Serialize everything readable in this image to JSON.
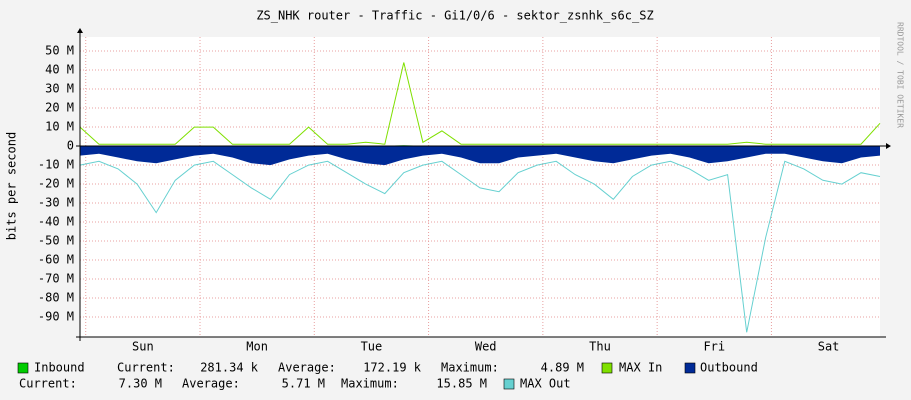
{
  "chart_data": {
    "type": "rrd",
    "title": "ZS_NHK router - Traffic - Gi1/0/6 - sektor_zsnhk_s6c_SZ",
    "y_label": "bits per second",
    "side_note": "RRDTOOL / TOBI OETIKER",
    "grid": true,
    "xlim": [
      0,
      168
    ],
    "xticks": [
      {
        "value": 13.2,
        "label": "Sun"
      },
      {
        "value": 37.2,
        "label": "Mon"
      },
      {
        "value": 61.2,
        "label": "Tue"
      },
      {
        "value": 85.2,
        "label": "Wed"
      },
      {
        "value": 109.2,
        "label": "Thu"
      },
      {
        "value": 133.2,
        "label": "Fri"
      },
      {
        "value": 157.2,
        "label": "Sat"
      }
    ],
    "ylim": [
      -100500000,
      57400000
    ],
    "yticks": [
      {
        "value": 50000000,
        "label": "50 M"
      },
      {
        "value": 40000000,
        "label": "40 M"
      },
      {
        "value": 30000000,
        "label": "30 M"
      },
      {
        "value": 20000000,
        "label": "20 M"
      },
      {
        "value": 10000000,
        "label": "10 M"
      },
      0,
      {
        "value": -10000000,
        "label": "-10 M"
      },
      {
        "value": -20000000,
        "label": "-20 M"
      },
      {
        "value": -30000000,
        "label": "-30 M"
      },
      {
        "value": -40000000,
        "label": "-40 M"
      },
      {
        "value": -50000000,
        "label": "-50 M"
      },
      {
        "value": -60000000,
        "label": "-60 M"
      },
      {
        "value": -70000000,
        "label": "-70 M"
      },
      {
        "value": -80000000,
        "label": "-80 M"
      },
      {
        "value": -90000000,
        "label": "-90 M"
      }
    ],
    "x": [
      0,
      4,
      8,
      12,
      16,
      20,
      24,
      28,
      32,
      36,
      40,
      44,
      48,
      52,
      56,
      60,
      64,
      68,
      72,
      76,
      80,
      84,
      88,
      92,
      96,
      100,
      104,
      108,
      112,
      116,
      120,
      124,
      128,
      132,
      136,
      140,
      144,
      148,
      152,
      156,
      160,
      164,
      168
    ],
    "legend_labels": {
      "current": "Current:",
      "average": "Average:",
      "maximum": "Maximum:"
    },
    "series": [
      {
        "name": "Inbound",
        "style": "area",
        "color": "#00cc00",
        "current": "281.34 k",
        "average": "172.19 k",
        "maximum": "4.89 M",
        "values": [
          200000.0,
          200000.0,
          200000.0,
          300000.0,
          200000.0,
          200000.0,
          200000.0,
          300000.0,
          200000.0,
          200000.0,
          200000.0,
          300000.0,
          200000.0,
          200000.0,
          200000.0,
          300000.0,
          200000.0,
          400000.0,
          200000.0,
          300000.0,
          200000.0,
          200000.0,
          200000.0,
          300000.0,
          200000.0,
          200000.0,
          200000.0,
          300000.0,
          200000.0,
          200000.0,
          200000.0,
          300000.0,
          200000.0,
          200000.0,
          200000.0,
          300000.0,
          200000.0,
          200000.0,
          200000.0,
          300000.0,
          200000.0,
          200000.0,
          300000.0
        ]
      },
      {
        "name": "MAX In",
        "style": "line",
        "color": "#7fe000",
        "values": [
          10000000.0,
          1000000.0,
          1000000.0,
          1000000.0,
          1000000.0,
          1000000.0,
          10000000.0,
          10000000.0,
          1000000.0,
          1000000.0,
          1000000.0,
          1000000.0,
          10000000.0,
          1000000.0,
          1000000.0,
          2000000.0,
          1000000.0,
          44000000.0,
          2000000.0,
          8000000.0,
          1000000.0,
          1000000.0,
          1000000.0,
          1000000.0,
          1000000.0,
          1000000.0,
          1000000.0,
          1000000.0,
          1000000.0,
          1000000.0,
          1000000.0,
          1000000.0,
          1000000.0,
          1000000.0,
          1000000.0,
          2000000.0,
          1000000.0,
          1000000.0,
          1000000.0,
          1000000.0,
          1000000.0,
          1000000.0,
          12000000.0
        ]
      },
      {
        "name": "Outbound",
        "style": "area",
        "color": "#002a97",
        "current": "7.30 M",
        "average": "5.71 M",
        "maximum": "15.85 M",
        "values": [
          -5000000.0,
          -4000000.0,
          -6000000.0,
          -8000000.0,
          -9000000.0,
          -7000000.0,
          -5000000.0,
          -4000000.0,
          -6000000.0,
          -9000000.0,
          -10000000.0,
          -7000000.0,
          -5000000.0,
          -4000000.0,
          -7000000.0,
          -9000000.0,
          -10000000.0,
          -7000000.0,
          -5000000.0,
          -4000000.0,
          -6000000.0,
          -9000000.0,
          -9000000.0,
          -6000000.0,
          -5000000.0,
          -4000000.0,
          -6000000.0,
          -8000000.0,
          -9000000.0,
          -7000000.0,
          -5000000.0,
          -4000000.0,
          -6000000.0,
          -9000000.0,
          -8000000.0,
          -6000000.0,
          -4000000.0,
          -4000000.0,
          -6000000.0,
          -8000000.0,
          -9000000.0,
          -6000000.0,
          -5000000.0
        ]
      },
      {
        "name": "MAX Out",
        "style": "line",
        "color": "#66d0d0",
        "values": [
          -10000000.0,
          -8000000.0,
          -12000000.0,
          -20000000.0,
          -35000000.0,
          -18000000.0,
          -10000000.0,
          -8000000.0,
          -15000000.0,
          -22000000.0,
          -28000000.0,
          -15000000.0,
          -10000000.0,
          -8000000.0,
          -14000000.0,
          -20000000.0,
          -25000000.0,
          -14000000.0,
          -10000000.0,
          -8000000.0,
          -15000000.0,
          -22000000.0,
          -24000000.0,
          -14000000.0,
          -10000000.0,
          -8000000.0,
          -15000000.0,
          -20000000.0,
          -28000000.0,
          -16000000.0,
          -10000000.0,
          -8000000.0,
          -12000000.0,
          -18000000.0,
          -15000000.0,
          -98000000.0,
          -48000000.0,
          -8000000.0,
          -12000000.0,
          -18000000.0,
          -20000000.0,
          -14000000.0,
          -16000000.0
        ]
      }
    ]
  }
}
